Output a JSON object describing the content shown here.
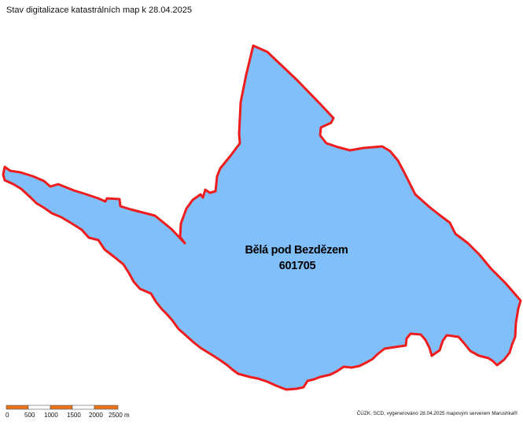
{
  "title": "Stav digitalizace katastrálních map k 28.04.2025",
  "area": {
    "name": "Bělá pod Bezdězem",
    "code": "601705",
    "fill_color": "#80bffa",
    "border_color": "#ee1c1c"
  },
  "scale_bar": {
    "labels": [
      "0",
      "500",
      "1000",
      "1500",
      "2000",
      "2500 m"
    ],
    "segment_colors": [
      "#e8731d",
      "#ffffff",
      "#e8731d",
      "#ffffff",
      "#e8731d"
    ]
  },
  "credit": "ČÚZK, SCD, vygenerováno 28.04.2025 mapovým serverem Marushka®"
}
